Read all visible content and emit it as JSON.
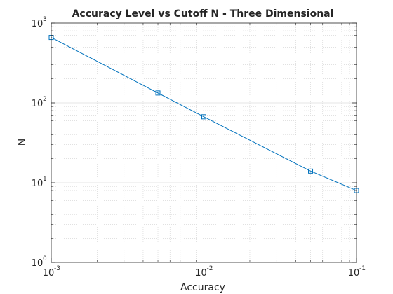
{
  "chart_data": {
    "type": "line",
    "title": "Accuracy Level vs Cutoff N - Three Dimensional",
    "xlabel": "Accuracy",
    "ylabel": "N",
    "xscale": "log",
    "yscale": "log",
    "xlim": [
      0.001,
      0.1
    ],
    "ylim": [
      1,
      1000
    ],
    "grid": true,
    "minor_grid": true,
    "box": true,
    "marker": "square",
    "line_color": "#0072BD",
    "x_ticks": [
      {
        "base": "10",
        "exp": "-3"
      },
      {
        "base": "10",
        "exp": "-2"
      },
      {
        "base": "10",
        "exp": "-1"
      }
    ],
    "y_ticks": [
      {
        "base": "10",
        "exp": "0"
      },
      {
        "base": "10",
        "exp": "1"
      },
      {
        "base": "10",
        "exp": "2"
      },
      {
        "base": "10",
        "exp": "3"
      }
    ],
    "series": [
      {
        "x": [
          0.001,
          0.005,
          0.01,
          0.05,
          0.1
        ],
        "y": [
          660,
          133,
          67,
          14,
          8
        ]
      }
    ]
  }
}
